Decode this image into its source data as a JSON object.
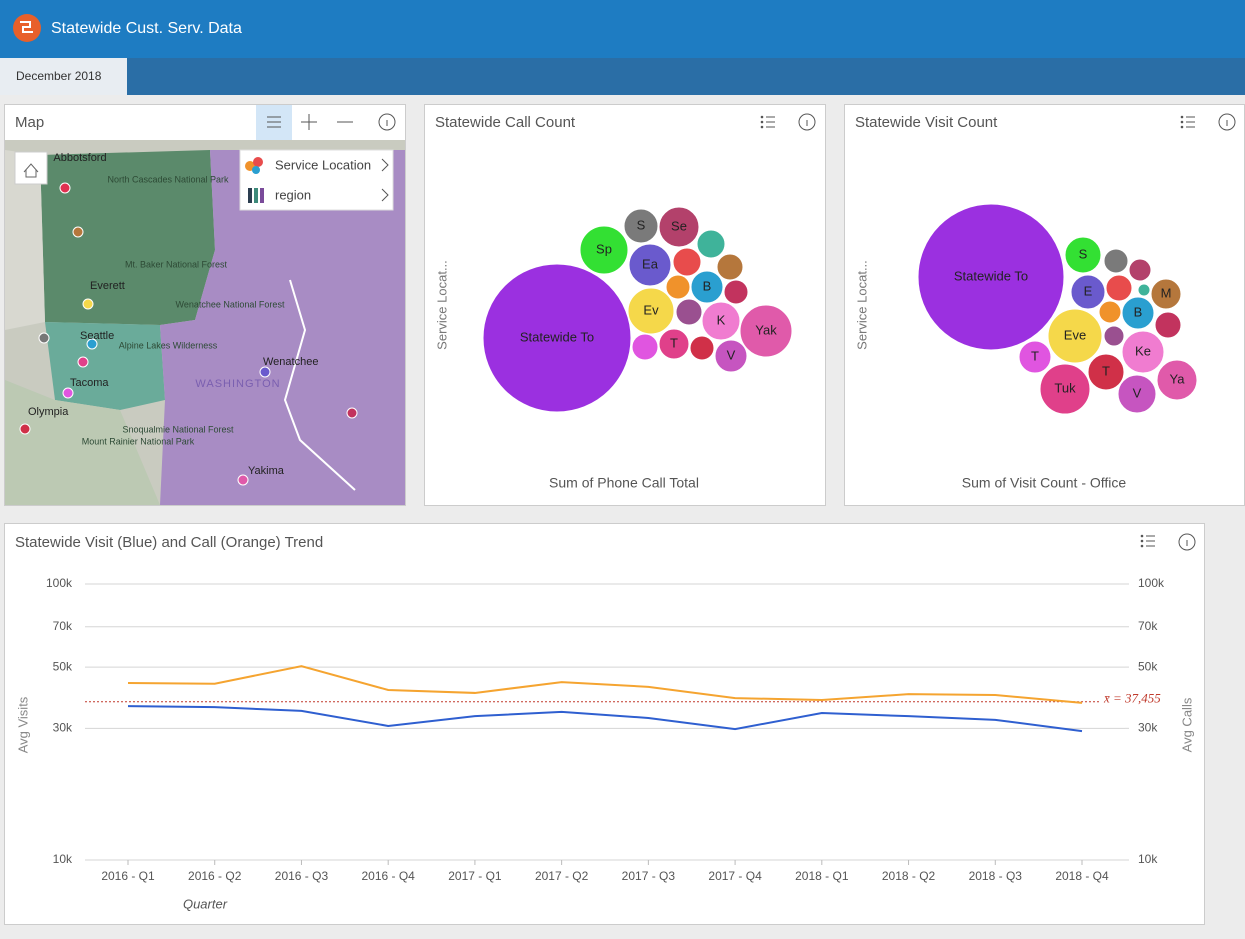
{
  "header": {
    "title": "Statewide Cust. Serv. Data",
    "tab": "December 2018"
  },
  "map": {
    "title": "Map",
    "legend": [
      "Service Location",
      "region"
    ],
    "labels": [
      "Abbotsford",
      "North Cascades National Park",
      "Mt. Baker National Forest",
      "Everett",
      "Seattle",
      "Alpine Lakes Wilderness",
      "Tacoma",
      "Olympia",
      "Wenatchee",
      "WASHINGTON",
      "Wenatchee National Forest",
      "Mount Rainier National Park",
      "Snoqualmie National Forest",
      "Yakima"
    ]
  },
  "chart_data": [
    {
      "type": "bubble",
      "title": "Statewide Call Count",
      "y_label": "Service Locat...",
      "x_label": "Sum of Phone Call Total",
      "categories": [
        "Statewide To",
        "Sp",
        "S",
        "Se",
        null,
        "Ea",
        null,
        null,
        null,
        "B",
        null,
        "Ev",
        null,
        "K",
        "Yak",
        null,
        "T",
        null,
        "V"
      ],
      "values": [
        547600,
        57600,
        28900,
        40000,
        19600,
        44100,
        19600,
        16900,
        14400,
        25600,
        14400,
        52900,
        16900,
        36100,
        67600,
        16900,
        22500,
        14400,
        25600
      ],
      "colors": [
        "#9b30e0",
        "#33e033",
        "#7a7a7a",
        "#b3416b",
        "#3fb39a",
        "#6a5acd",
        "#e84c4c",
        "#b5773c",
        "#f0922b",
        "#2a9fd0",
        "#c2335e",
        "#f5d84a",
        "#9a5090",
        "#f07cd0",
        "#e05aaa",
        "#e055e0",
        "#e0408a",
        "#d03048",
        "#c655c0"
      ]
    },
    {
      "type": "bubble",
      "title": "Statewide Visit Count",
      "y_label": "Service Locat...",
      "x_label": "Sum of Visit Count - Office",
      "categories": [
        "Statewide To",
        "S",
        null,
        null,
        "E",
        null,
        null,
        "M",
        null,
        "B",
        null,
        "Eve",
        null,
        "Ke",
        "T",
        "T",
        "Tuk",
        "V",
        "Ya"
      ],
      "values": [
        532900,
        32400,
        14400,
        12100,
        28900,
        16900,
        3600,
        22500,
        12100,
        25600,
        16900,
        72900,
        10000,
        44100,
        25600,
        32400,
        62500,
        36100,
        40000
      ],
      "colors": [
        "#9b30e0",
        "#33e033",
        "#7a7a7a",
        "#b3416b",
        "#6a5acd",
        "#e84c4c",
        "#3fb39a",
        "#b5773c",
        "#f0922b",
        "#2a9fd0",
        "#c2335e",
        "#f5d84a",
        "#9a5090",
        "#f07cd0",
        "#e055e0",
        "#d03048",
        "#e0408a",
        "#c655c0",
        "#e05aaa"
      ]
    },
    {
      "type": "line",
      "title": "Statewide Visit (Blue) and Call (Orange) Trend",
      "x_label": "Quarter",
      "y_label": "Avg Visits",
      "y2_label": "Avg Calls",
      "log_scale": true,
      "grid": true,
      "categories": [
        "2016 - Q1",
        "2016 - Q2",
        "2016 - Q3",
        "2016 - Q4",
        "2017 - Q1",
        "2017 - Q2",
        "2017 - Q3",
        "2017 - Q4",
        "2018 - Q1",
        "2018 - Q2",
        "2018 - Q3",
        "2018 - Q4"
      ],
      "ylim": [
        10000,
        100000
      ],
      "yticks": [
        {
          "value": 10000,
          "label": "10k"
        },
        {
          "value": 30000,
          "label": "30k"
        },
        {
          "value": 50000,
          "label": "50k"
        },
        {
          "value": 70000,
          "label": "70k"
        },
        {
          "value": 100000,
          "label": "100k"
        }
      ],
      "y2lim": [
        10000,
        100000
      ],
      "y2ticks": [
        {
          "value": 10000,
          "label": "10k"
        },
        {
          "value": 30000,
          "label": "30k"
        },
        {
          "value": 50000,
          "label": "50k"
        },
        {
          "value": 70000,
          "label": "70k"
        },
        {
          "value": 100000,
          "label": "100k"
        }
      ],
      "series": [
        {
          "color": "#2f5fd0",
          "axis": "y",
          "values": [
            36100,
            35800,
            34700,
            30600,
            33200,
            34400,
            32700,
            29800,
            34100,
            33200,
            32200,
            29300
          ]
        },
        {
          "color": "#f5a430",
          "axis": "y2",
          "values": [
            43800,
            43500,
            50400,
            41300,
            40300,
            44100,
            42400,
            38600,
            38000,
            39900,
            39600,
            37100
          ]
        }
      ],
      "annotation": {
        "value": 37455,
        "label": "x̄ = 37,455",
        "color": "#c0392b"
      }
    }
  ]
}
